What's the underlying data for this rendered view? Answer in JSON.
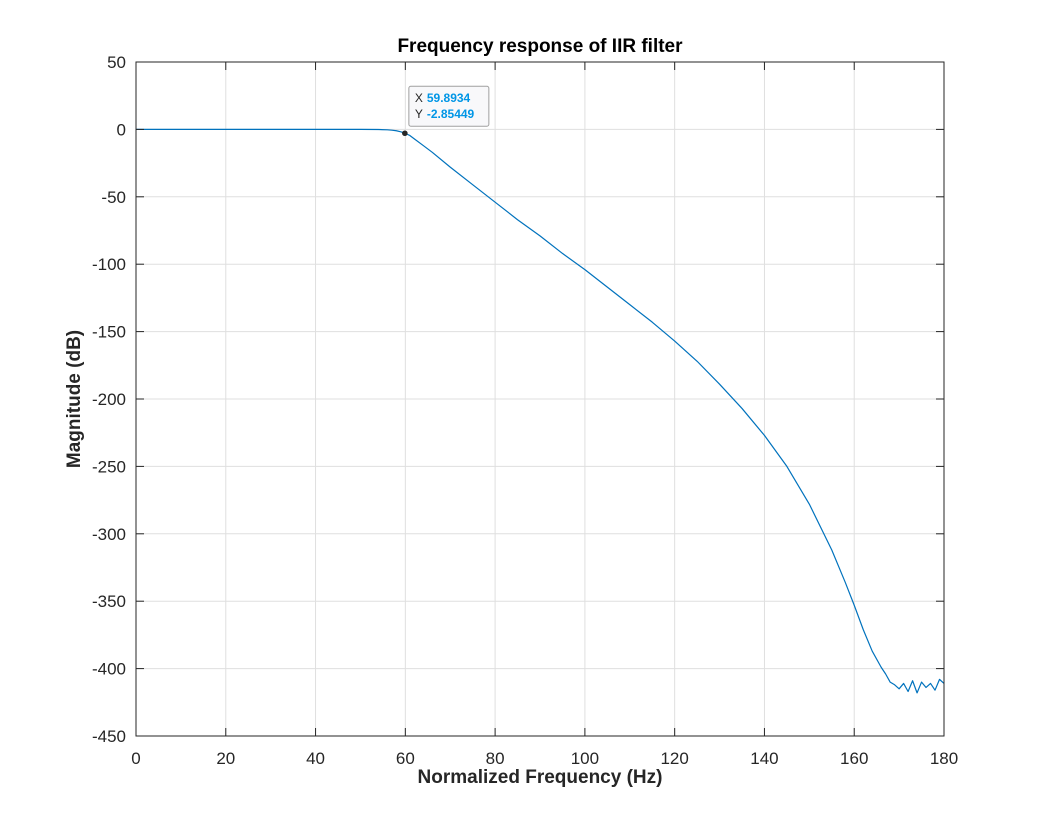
{
  "chart_data": {
    "type": "line",
    "title": "Frequency response of IIR filter",
    "xlabel": "Normalized Frequency (Hz)",
    "ylabel": "Magnitude (dB)",
    "xlim": [
      0,
      180
    ],
    "ylim": [
      -450,
      50
    ],
    "xticks": [
      0,
      20,
      40,
      60,
      80,
      100,
      120,
      140,
      160,
      180
    ],
    "yticks": [
      50,
      0,
      -50,
      -100,
      -150,
      -200,
      -250,
      -300,
      -350,
      -400,
      -450
    ],
    "grid": true,
    "series": [
      {
        "color": "#0072bd",
        "points": [
          [
            0,
            0
          ],
          [
            10,
            0
          ],
          [
            20,
            0
          ],
          [
            30,
            0
          ],
          [
            40,
            0
          ],
          [
            50,
            0
          ],
          [
            54,
            -0.1
          ],
          [
            56,
            -0.3
          ],
          [
            57,
            -0.6
          ],
          [
            58,
            -1.0
          ],
          [
            59,
            -1.8
          ],
          [
            59.8934,
            -2.85449
          ],
          [
            61,
            -4.5
          ],
          [
            62,
            -7
          ],
          [
            64,
            -12
          ],
          [
            66,
            -17
          ],
          [
            70,
            -28
          ],
          [
            75,
            -41
          ],
          [
            80,
            -54
          ],
          [
            85,
            -67
          ],
          [
            90,
            -79
          ],
          [
            95,
            -92
          ],
          [
            100,
            -104
          ],
          [
            105,
            -117
          ],
          [
            110,
            -130
          ],
          [
            115,
            -143
          ],
          [
            120,
            -157
          ],
          [
            125,
            -172
          ],
          [
            130,
            -189
          ],
          [
            135,
            -207
          ],
          [
            140,
            -227
          ],
          [
            145,
            -250
          ],
          [
            150,
            -278
          ],
          [
            155,
            -312
          ],
          [
            158,
            -336
          ],
          [
            160,
            -353
          ],
          [
            162,
            -371
          ],
          [
            164,
            -387
          ],
          [
            166,
            -399
          ],
          [
            167,
            -404
          ],
          [
            168,
            -410
          ],
          [
            169,
            -412
          ],
          [
            170,
            -415
          ],
          [
            171,
            -411
          ],
          [
            172,
            -417
          ],
          [
            173,
            -409
          ],
          [
            174,
            -418
          ],
          [
            175,
            -410
          ],
          [
            176,
            -414
          ],
          [
            177,
            -411
          ],
          [
            178,
            -416
          ],
          [
            179,
            -408
          ],
          [
            180,
            -411
          ]
        ]
      }
    ],
    "datatip": {
      "x": 59.8934,
      "y": -2.85449,
      "x_label": "X",
      "y_label": "Y",
      "x_text": "59.8934",
      "y_text": "-2.85449"
    }
  },
  "colors": {
    "line": "#0072bd",
    "grid": "#dfdfdf",
    "axes": "#262626",
    "datatip_value": "#0096e6"
  }
}
